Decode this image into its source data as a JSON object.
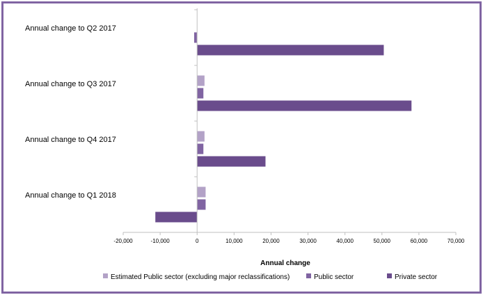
{
  "chart_data": {
    "type": "bar",
    "orientation": "horizontal",
    "categories": [
      "Annual change to Q2 2017",
      "Annual change to Q3 2017",
      "Annual change to Q4 2017",
      "Annual change to Q1 2018"
    ],
    "series": [
      {
        "name": "Estimated Public sector (excluding major reclassifications)",
        "color": "#b3a2c7",
        "values": [
          null,
          2000,
          2000,
          2300
        ]
      },
      {
        "name": "Public sector",
        "color": "#8064a2",
        "values": [
          -800,
          1700,
          1700,
          2300
        ]
      },
      {
        "name": "Private sector",
        "color": "#6a4c8c",
        "values": [
          50500,
          58000,
          18500,
          -11300
        ]
      }
    ],
    "xlim": [
      -20000,
      70000
    ],
    "xticks": [
      -20000,
      -10000,
      0,
      10000,
      20000,
      30000,
      40000,
      50000,
      60000,
      70000
    ],
    "xtick_labels": [
      "-20,000",
      "-10,000",
      "0",
      "10,000",
      "20,000",
      "30,000",
      "40,000",
      "50,000",
      "60,000",
      "70,000"
    ],
    "xlabel": "Annual change",
    "grid": false,
    "legend_position": "bottom"
  }
}
